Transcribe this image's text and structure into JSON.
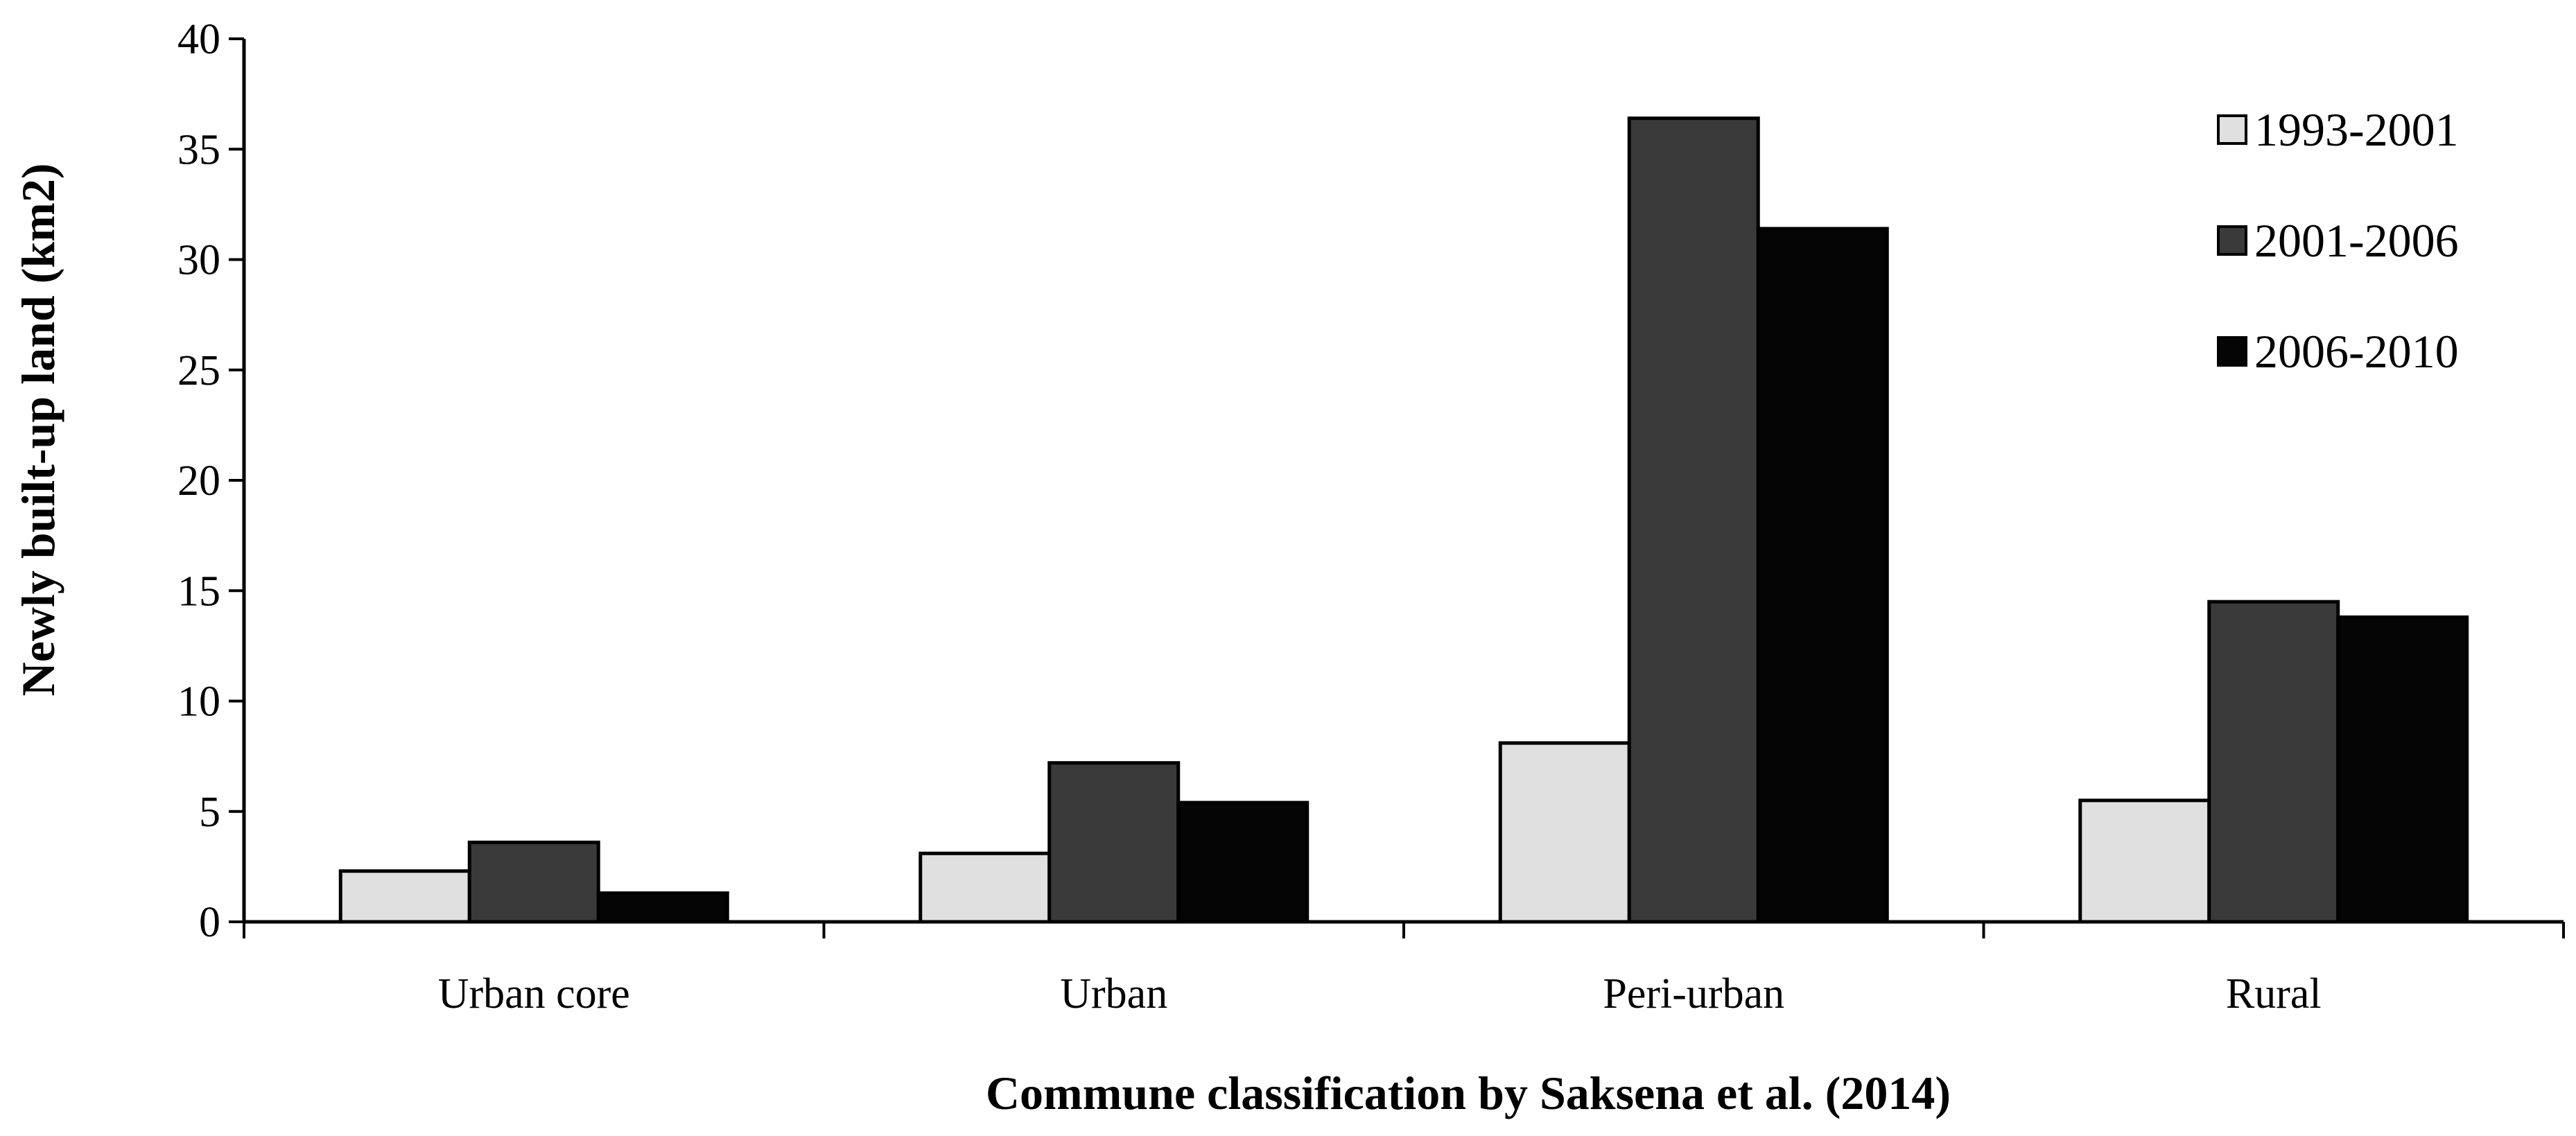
{
  "chart_data": {
    "type": "bar",
    "title": "",
    "xlabel": "Commune classification by Saksena et al. (2014)",
    "ylabel": "Newly built-up land (km2)",
    "ylim": [
      0,
      40
    ],
    "yticks": [
      0,
      5,
      10,
      15,
      20,
      25,
      30,
      35,
      40
    ],
    "categories": [
      "Urban core",
      "Urban",
      "Peri-urban",
      "Rural"
    ],
    "series": [
      {
        "name": "1993-2001",
        "color": "#e0e0e0",
        "values": [
          2.3,
          3.1,
          8.1,
          5.5
        ]
      },
      {
        "name": "2001-2006",
        "color": "#3a3a3a",
        "values": [
          3.6,
          7.2,
          36.4,
          14.5
        ]
      },
      {
        "name": "2006-2010",
        "color": "#050505",
        "values": [
          1.3,
          5.4,
          31.4,
          13.8
        ]
      }
    ],
    "legend_position": "top-right",
    "grid": false
  }
}
